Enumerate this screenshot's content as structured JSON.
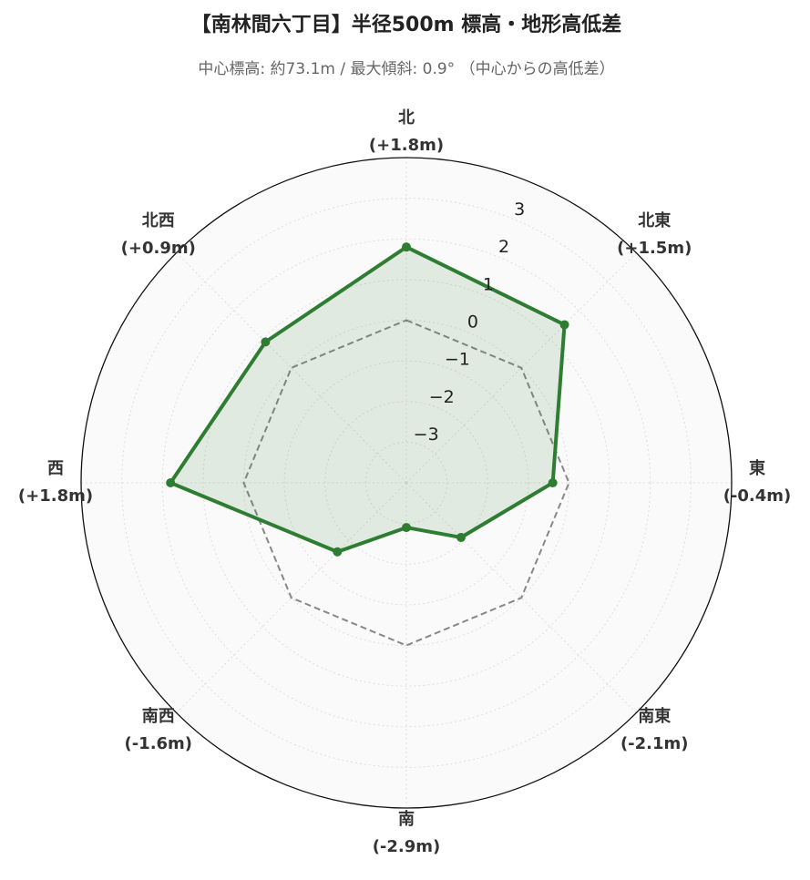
{
  "chart_data": {
    "type": "radar",
    "title": "【南林間六丁目】半径500m 標高・地形高低差",
    "subtitle": "中心標高: 約73.1m / 最大傾斜: 0.9° （中心からの高低差）",
    "categories": [
      "北",
      "北東",
      "東",
      "南東",
      "南",
      "南西",
      "西",
      "北西"
    ],
    "values": [
      1.8,
      1.5,
      -0.4,
      -2.1,
      -2.9,
      -1.6,
      1.8,
      0.9
    ],
    "value_labels": [
      "(+1.8m)",
      "(+1.5m)",
      "(-0.4m)",
      "(-2.1m)",
      "(-2.9m)",
      "(-1.6m)",
      "(+1.8m)",
      "(+0.9m)"
    ],
    "color": "#2e7d32",
    "ylim": [
      -4,
      4
    ],
    "yticks": [
      {
        "value": -3,
        "label": "−3"
      },
      {
        "value": -2,
        "label": "−2"
      },
      {
        "value": -1,
        "label": "−1"
      },
      0,
      1,
      2,
      3
    ],
    "grid": true
  }
}
